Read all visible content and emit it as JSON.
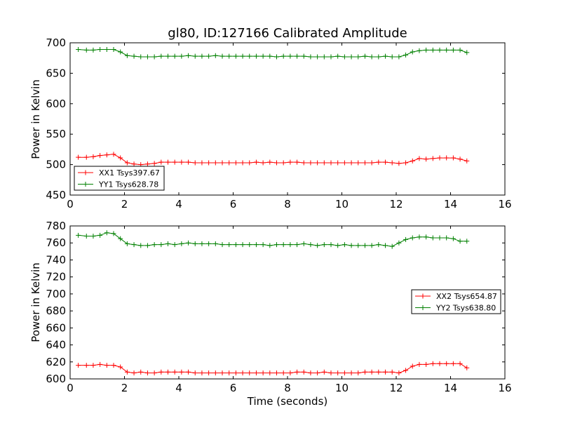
{
  "chart_data": [
    {
      "type": "line",
      "title": "gl80, ID:127166 Calibrated Amplitude",
      "xlabel": "",
      "ylabel": "Power in Kelvin",
      "xlim": [
        0,
        16
      ],
      "ylim": [
        450,
        700
      ],
      "xticks": [
        0,
        2,
        4,
        6,
        8,
        10,
        12,
        14,
        16
      ],
      "yticks": [
        450,
        500,
        550,
        600,
        650,
        700
      ],
      "legend_position": "lower-left",
      "series": [
        {
          "name": "XX1 Tsys397.67",
          "color": "#ff0000",
          "x": [
            0.3,
            0.6,
            0.85,
            1.1,
            1.35,
            1.6,
            1.85,
            2.1,
            2.35,
            2.6,
            2.85,
            3.1,
            3.35,
            3.6,
            3.85,
            4.1,
            4.35,
            4.6,
            4.85,
            5.1,
            5.35,
            5.6,
            5.85,
            6.1,
            6.35,
            6.6,
            6.85,
            7.1,
            7.35,
            7.6,
            7.85,
            8.1,
            8.35,
            8.6,
            8.85,
            9.1,
            9.35,
            9.6,
            9.85,
            10.1,
            10.35,
            10.6,
            10.85,
            11.1,
            11.35,
            11.6,
            11.85,
            12.1,
            12.35,
            12.6,
            12.85,
            13.1,
            13.35,
            13.6,
            13.85,
            14.1,
            14.35,
            14.6
          ],
          "y": [
            512,
            512,
            513,
            515,
            516,
            517,
            511,
            503,
            501,
            500,
            501,
            502,
            504,
            504,
            504,
            504,
            504,
            503,
            503,
            503,
            503,
            503,
            503,
            503,
            503,
            503,
            504,
            503,
            504,
            503,
            503,
            504,
            504,
            503,
            503,
            503,
            503,
            503,
            503,
            503,
            503,
            503,
            503,
            503,
            504,
            504,
            503,
            502,
            503,
            506,
            510,
            509,
            510,
            511,
            511,
            511,
            509,
            506
          ]
        },
        {
          "name": "YY1 Tsys628.78",
          "color": "#008000",
          "x": [
            0.3,
            0.6,
            0.85,
            1.1,
            1.35,
            1.6,
            1.85,
            2.1,
            2.35,
            2.6,
            2.85,
            3.1,
            3.35,
            3.6,
            3.85,
            4.1,
            4.35,
            4.6,
            4.85,
            5.1,
            5.35,
            5.6,
            5.85,
            6.1,
            6.35,
            6.6,
            6.85,
            7.1,
            7.35,
            7.6,
            7.85,
            8.1,
            8.35,
            8.6,
            8.85,
            9.1,
            9.35,
            9.6,
            9.85,
            10.1,
            10.35,
            10.6,
            10.85,
            11.1,
            11.35,
            11.6,
            11.85,
            12.1,
            12.35,
            12.6,
            12.85,
            13.1,
            13.35,
            13.6,
            13.85,
            14.1,
            14.35,
            14.6
          ],
          "y": [
            689,
            688,
            688,
            689,
            689,
            689,
            685,
            679,
            678,
            677,
            677,
            677,
            678,
            678,
            678,
            678,
            679,
            678,
            678,
            678,
            679,
            678,
            678,
            678,
            678,
            678,
            678,
            678,
            678,
            677,
            678,
            678,
            678,
            678,
            677,
            677,
            677,
            677,
            678,
            677,
            677,
            677,
            678,
            677,
            677,
            678,
            677,
            677,
            680,
            685,
            687,
            688,
            688,
            688,
            688,
            688,
            688,
            684
          ]
        }
      ]
    },
    {
      "type": "line",
      "title": "",
      "xlabel": "Time (seconds)",
      "ylabel": "Power in Kelvin",
      "xlim": [
        0,
        16
      ],
      "ylim": [
        600,
        780
      ],
      "xticks": [
        0,
        2,
        4,
        6,
        8,
        10,
        12,
        14,
        16
      ],
      "yticks": [
        600,
        620,
        640,
        660,
        680,
        700,
        720,
        740,
        760,
        780
      ],
      "legend_position": "center-right",
      "series": [
        {
          "name": "XX2 Tsys654.87",
          "color": "#ff0000",
          "x": [
            0.3,
            0.6,
            0.85,
            1.1,
            1.35,
            1.6,
            1.85,
            2.1,
            2.35,
            2.6,
            2.85,
            3.1,
            3.35,
            3.6,
            3.85,
            4.1,
            4.35,
            4.6,
            4.85,
            5.1,
            5.35,
            5.6,
            5.85,
            6.1,
            6.35,
            6.6,
            6.85,
            7.1,
            7.35,
            7.6,
            7.85,
            8.1,
            8.35,
            8.6,
            8.85,
            9.1,
            9.35,
            9.6,
            9.85,
            10.1,
            10.35,
            10.6,
            10.85,
            11.1,
            11.35,
            11.6,
            11.85,
            12.1,
            12.35,
            12.6,
            12.85,
            13.1,
            13.35,
            13.6,
            13.85,
            14.1,
            14.35,
            14.6
          ],
          "y": [
            616,
            616,
            616,
            617,
            616,
            616,
            614,
            608,
            607,
            608,
            607,
            607,
            608,
            608,
            608,
            608,
            608,
            607,
            607,
            607,
            607,
            607,
            607,
            607,
            607,
            607,
            607,
            607,
            607,
            607,
            607,
            607,
            608,
            608,
            607,
            607,
            608,
            607,
            607,
            607,
            607,
            607,
            608,
            608,
            608,
            608,
            608,
            607,
            610,
            615,
            617,
            617,
            618,
            618,
            618,
            618,
            618,
            613
          ]
        },
        {
          "name": "YY2 Tsys638.80",
          "color": "#008000",
          "x": [
            0.3,
            0.6,
            0.85,
            1.1,
            1.35,
            1.6,
            1.85,
            2.1,
            2.35,
            2.6,
            2.85,
            3.1,
            3.35,
            3.6,
            3.85,
            4.1,
            4.35,
            4.6,
            4.85,
            5.1,
            5.35,
            5.6,
            5.85,
            6.1,
            6.35,
            6.6,
            6.85,
            7.1,
            7.35,
            7.6,
            7.85,
            8.1,
            8.35,
            8.6,
            8.85,
            9.1,
            9.35,
            9.6,
            9.85,
            10.1,
            10.35,
            10.6,
            10.85,
            11.1,
            11.35,
            11.6,
            11.85,
            12.1,
            12.35,
            12.6,
            12.85,
            13.1,
            13.35,
            13.6,
            13.85,
            14.1,
            14.35,
            14.6
          ],
          "y": [
            769,
            768,
            768,
            769,
            772,
            771,
            765,
            759,
            758,
            757,
            757,
            758,
            758,
            759,
            758,
            759,
            760,
            759,
            759,
            759,
            759,
            758,
            758,
            758,
            758,
            758,
            758,
            758,
            757,
            758,
            758,
            758,
            758,
            759,
            758,
            757,
            758,
            758,
            757,
            758,
            757,
            757,
            757,
            757,
            758,
            757,
            756,
            760,
            764,
            766,
            767,
            767,
            766,
            766,
            766,
            765,
            762,
            762
          ]
        }
      ]
    }
  ]
}
